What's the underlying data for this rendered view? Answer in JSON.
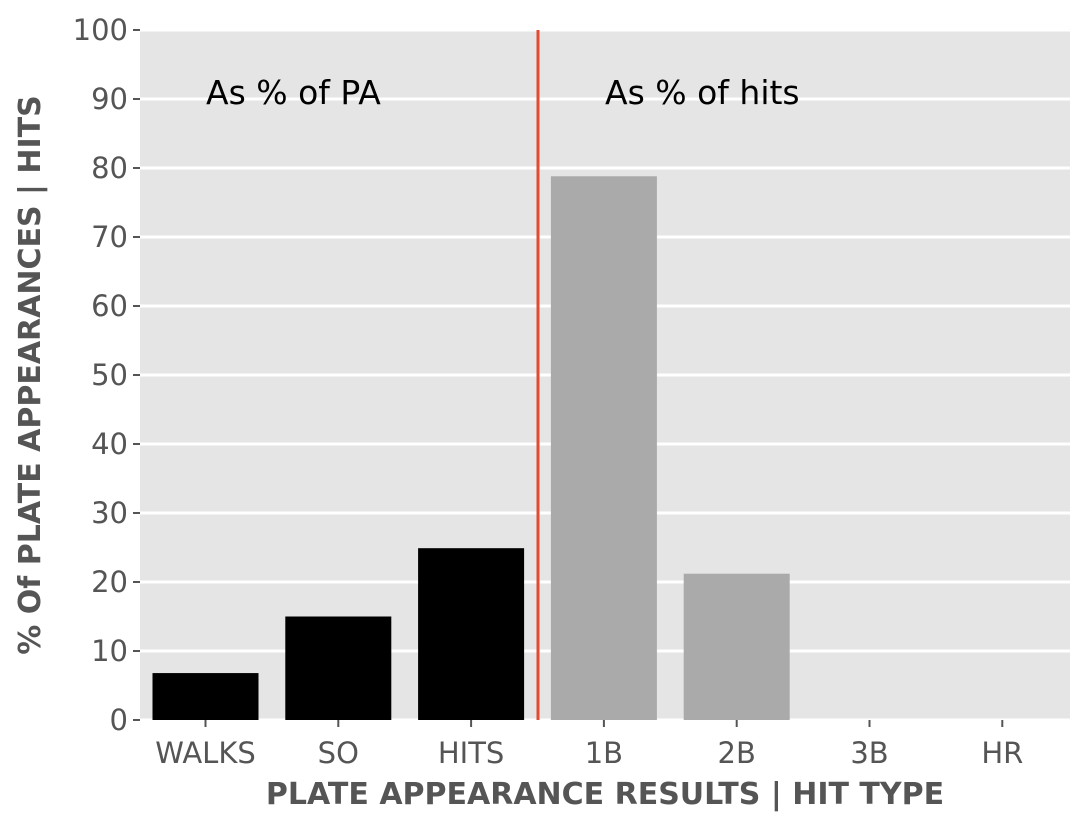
{
  "chart_data": {
    "type": "bar",
    "categories": [
      "WALKS",
      "SO",
      "HITS",
      "1B",
      "2B",
      "3B",
      "HR"
    ],
    "values": [
      6.8,
      15.0,
      24.9,
      78.8,
      21.2,
      0,
      0
    ],
    "bar_colors": [
      "#000000",
      "#000000",
      "#000000",
      "#aaaaaa",
      "#aaaaaa",
      "#aaaaaa",
      "#aaaaaa"
    ],
    "xlabel": "PLATE APPEARANCE RESULTS | HIT TYPE",
    "ylabel": "% Of PLATE APPEARANCES | HITS",
    "ylim": [
      0,
      100
    ],
    "yticks": [
      0,
      10,
      20,
      30,
      40,
      50,
      60,
      70,
      80,
      90,
      100
    ],
    "grid": true,
    "divider_color": "#e24a33",
    "annotations": [
      "As % of PA",
      "As % of hits"
    ]
  }
}
